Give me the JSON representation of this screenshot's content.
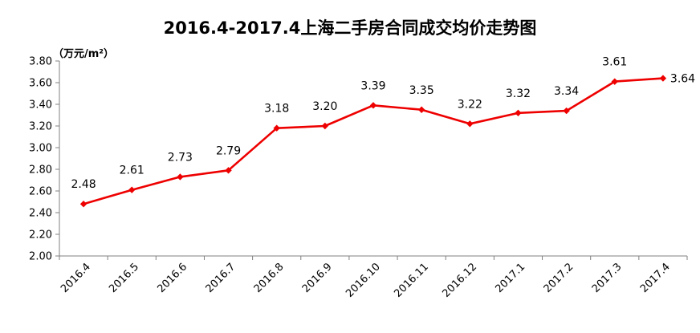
{
  "chart_data": {
    "type": "line",
    "title": "2016.4-2017.4上海二手房合同成交均价走势图",
    "unit_label": "（万元/m²）",
    "categories": [
      "2016.4",
      "2016.5",
      "2016.6",
      "2016.7",
      "2016.8",
      "2016.9",
      "2016.10",
      "2016.11",
      "2016.12",
      "2017.1",
      "2017.2",
      "2017.3",
      "2017.4"
    ],
    "series": [
      {
        "values": [
          2.48,
          2.61,
          2.73,
          2.79,
          3.18,
          3.2,
          3.39,
          3.35,
          3.22,
          3.32,
          3.34,
          3.61,
          3.64
        ]
      }
    ],
    "ylim": [
      2.0,
      3.8
    ],
    "yticks": [
      "2.00",
      "2.20",
      "2.40",
      "2.60",
      "2.80",
      "3.00",
      "3.20",
      "3.40",
      "3.60",
      "3.80"
    ],
    "data_labels": [
      "2.48",
      "2.61",
      "2.73",
      "2.79",
      "3.18",
      "3.20",
      "3.39",
      "3.35",
      "3.22",
      "3.32",
      "3.34",
      "3.61",
      "3.64"
    ],
    "grid": false,
    "legend": "none",
    "line_color": "#ee0000"
  }
}
